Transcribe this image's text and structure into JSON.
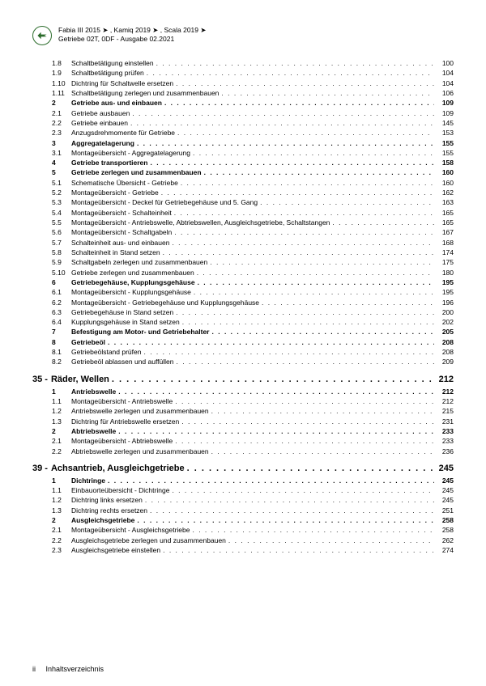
{
  "header": {
    "brand": "ŠKODA",
    "line1": "Fabia III 2015 ➤ , Kamiq 2019 ➤ , Scala 2019 ➤",
    "line2": "Getriebe 02T, 0DF - Ausgabe 02.2021"
  },
  "entries": [
    {
      "num": "1.8",
      "title": "Schaltbetätigung einstellen",
      "page": "100",
      "bold": false
    },
    {
      "num": "1.9",
      "title": "Schaltbetätigung prüfen",
      "page": "104",
      "bold": false
    },
    {
      "num": "1.10",
      "title": "Dichtring für Schaltwelle ersetzen",
      "page": "104",
      "bold": false
    },
    {
      "num": "1.11",
      "title": "Schaltbetätigung zerlegen und zusammenbauen",
      "page": "106",
      "bold": false
    },
    {
      "num": "2",
      "title": "Getriebe aus- und einbauen",
      "page": "109",
      "bold": true
    },
    {
      "num": "2.1",
      "title": "Getriebe ausbauen",
      "page": "109",
      "bold": false
    },
    {
      "num": "2.2",
      "title": "Getriebe einbauen",
      "page": "145",
      "bold": false
    },
    {
      "num": "2.3",
      "title": "Anzugsdrehmomente für Getriebe",
      "page": "153",
      "bold": false
    },
    {
      "num": "3",
      "title": "Aggregatelagerung",
      "page": "155",
      "bold": true
    },
    {
      "num": "3.1",
      "title": "Montageübersicht - Aggregatelagerung",
      "page": "155",
      "bold": false
    },
    {
      "num": "4",
      "title": "Getriebe transportieren",
      "page": "158",
      "bold": true
    },
    {
      "num": "5",
      "title": "Getriebe zerlegen und zusammenbauen",
      "page": "160",
      "bold": true
    },
    {
      "num": "5.1",
      "title": "Schematische Übersicht - Getriebe",
      "page": "160",
      "bold": false
    },
    {
      "num": "5.2",
      "title": "Montageübersicht - Getriebe",
      "page": "162",
      "bold": false
    },
    {
      "num": "5.3",
      "title": "Montageübersicht - Deckel für Getriebegehäuse und 5. Gang",
      "page": "163",
      "bold": false
    },
    {
      "num": "5.4",
      "title": "Montageübersicht - Schalteinheit",
      "page": "165",
      "bold": false
    },
    {
      "num": "5.5",
      "title": "Montageübersicht - Antriebswelle, Abtriebswellen, Ausgleichsgetriebe, Schaltstangen",
      "page": "165",
      "bold": false
    },
    {
      "num": "5.6",
      "title": "Montageübersicht - Schaltgabeln",
      "page": "167",
      "bold": false
    },
    {
      "num": "5.7",
      "title": "Schalteinheit aus- und einbauen",
      "page": "168",
      "bold": false
    },
    {
      "num": "5.8",
      "title": "Schalteinheit in Stand setzen",
      "page": "174",
      "bold": false
    },
    {
      "num": "5.9",
      "title": "Schaltgabeln zerlegen und zusammenbauen",
      "page": "175",
      "bold": false
    },
    {
      "num": "5.10",
      "title": "Getriebe zerlegen und zusammenbauen",
      "page": "180",
      "bold": false
    },
    {
      "num": "6",
      "title": "Getriebegehäuse, Kupplungsgehäuse",
      "page": "195",
      "bold": true
    },
    {
      "num": "6.1",
      "title": "Montageübersicht - Kupplungsgehäuse",
      "page": "195",
      "bold": false
    },
    {
      "num": "6.2",
      "title": "Montageübersicht - Getriebegehäuse und Kupplungsgehäuse",
      "page": "196",
      "bold": false
    },
    {
      "num": "6.3",
      "title": "Getriebegehäuse in Stand setzen",
      "page": "200",
      "bold": false
    },
    {
      "num": "6.4",
      "title": "Kupplungsgehäuse in Stand setzen",
      "page": "202",
      "bold": false
    },
    {
      "num": "7",
      "title": "Befestigung am Motor- und Getriebehalter",
      "page": "205",
      "bold": true
    },
    {
      "num": "8",
      "title": "Getriebeöl",
      "page": "208",
      "bold": true
    },
    {
      "num": "8.1",
      "title": "Getriebeölstand prüfen",
      "page": "208",
      "bold": false
    },
    {
      "num": "8.2",
      "title": "Getriebeöl ablassen und auffüllen",
      "page": "209",
      "bold": false
    }
  ],
  "chapter35": {
    "num": "35 -",
    "title": "Räder, Wellen",
    "page": "212"
  },
  "entries35": [
    {
      "num": "1",
      "title": "Antriebswelle",
      "page": "212",
      "bold": true
    },
    {
      "num": "1.1",
      "title": "Montageübersicht - Antriebswelle",
      "page": "212",
      "bold": false
    },
    {
      "num": "1.2",
      "title": "Antriebswelle zerlegen und zusammenbauen",
      "page": "215",
      "bold": false
    },
    {
      "num": "1.3",
      "title": "Dichtring für Antriebswelle ersetzen",
      "page": "231",
      "bold": false
    },
    {
      "num": "2",
      "title": "Abtriebswelle",
      "page": "233",
      "bold": true
    },
    {
      "num": "2.1",
      "title": "Montageübersicht - Abtriebswelle",
      "page": "233",
      "bold": false
    },
    {
      "num": "2.2",
      "title": "Abtriebswelle zerlegen und zusammenbauen",
      "page": "236",
      "bold": false
    }
  ],
  "chapter39": {
    "num": "39 -",
    "title": "Achsantrieb, Ausgleichgetriebe",
    "page": "245"
  },
  "entries39": [
    {
      "num": "1",
      "title": "Dichtringe",
      "page": "245",
      "bold": true
    },
    {
      "num": "1.1",
      "title": "Einbauorteübersicht - Dichtringe",
      "page": "245",
      "bold": false
    },
    {
      "num": "1.2",
      "title": "Dichtring links ersetzen",
      "page": "245",
      "bold": false
    },
    {
      "num": "1.3",
      "title": "Dichtring rechts ersetzen",
      "page": "251",
      "bold": false
    },
    {
      "num": "2",
      "title": "Ausgleichsgetriebe",
      "page": "258",
      "bold": true
    },
    {
      "num": "2.1",
      "title": "Montageübersicht - Ausgleichsgetriebe",
      "page": "258",
      "bold": false
    },
    {
      "num": "2.2",
      "title": "Ausgleichsgetriebe zerlegen und zusammenbauen",
      "page": "262",
      "bold": false
    },
    {
      "num": "2.3",
      "title": "Ausgleichsgetriebe einstellen",
      "page": "274",
      "bold": false
    }
  ],
  "footer": {
    "page": "ii",
    "label": "Inhaltsverzeichnis"
  }
}
